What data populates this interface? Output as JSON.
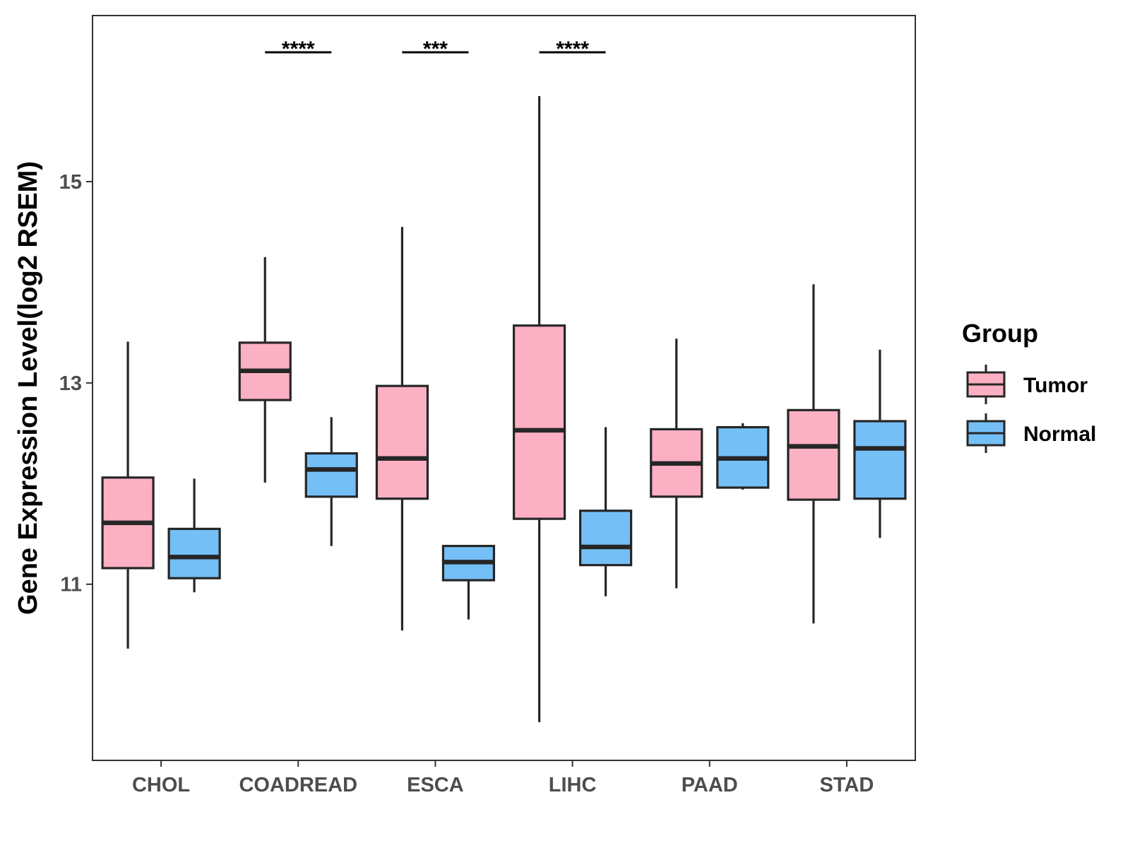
{
  "chart_data": {
    "type": "boxplot",
    "title": "",
    "xlabel": "",
    "ylabel": "Gene Expression Level(log2 RSEM)",
    "ylim": [
      9.25,
      16.65
    ],
    "yticks": [
      11,
      13,
      15
    ],
    "categories": [
      "CHOL",
      "COADREAD",
      "ESCA",
      "LIHC",
      "PAAD",
      "STAD"
    ],
    "legend": {
      "title": "Group",
      "position": "right",
      "entries": [
        {
          "name": "Tumor",
          "color": "#fbb1c3"
        },
        {
          "name": "Normal",
          "color": "#75bff7"
        }
      ]
    },
    "series": [
      {
        "name": "Tumor",
        "color": "#fbb1c3",
        "boxes": [
          {
            "category": "CHOL",
            "min": 10.36,
            "q1": 11.16,
            "median": 11.61,
            "q3": 12.06,
            "max": 13.41
          },
          {
            "category": "COADREAD",
            "min": 12.01,
            "q1": 12.83,
            "median": 13.12,
            "q3": 13.4,
            "max": 14.25
          },
          {
            "category": "ESCA",
            "min": 10.54,
            "q1": 11.85,
            "median": 12.25,
            "q3": 12.97,
            "max": 14.55
          },
          {
            "category": "LIHC",
            "min": 9.63,
            "q1": 11.65,
            "median": 12.53,
            "q3": 13.57,
            "max": 15.85
          },
          {
            "category": "PAAD",
            "min": 10.96,
            "q1": 11.87,
            "median": 12.2,
            "q3": 12.54,
            "max": 13.44
          },
          {
            "category": "STAD",
            "min": 10.61,
            "q1": 11.84,
            "median": 12.37,
            "q3": 12.73,
            "max": 13.98
          }
        ]
      },
      {
        "name": "Normal",
        "color": "#75bff7",
        "boxes": [
          {
            "category": "CHOL",
            "min": 10.92,
            "q1": 11.06,
            "median": 11.27,
            "q3": 11.55,
            "max": 12.05
          },
          {
            "category": "COADREAD",
            "min": 11.38,
            "q1": 11.87,
            "median": 12.14,
            "q3": 12.3,
            "max": 12.66
          },
          {
            "category": "ESCA",
            "min": 10.65,
            "q1": 11.04,
            "median": 11.22,
            "q3": 11.38,
            "max": 11.38
          },
          {
            "category": "LIHC",
            "min": 10.88,
            "q1": 11.19,
            "median": 11.37,
            "q3": 11.73,
            "max": 12.56
          },
          {
            "category": "PAAD",
            "min": 11.94,
            "q1": 11.96,
            "median": 12.25,
            "q3": 12.56,
            "max": 12.6
          },
          {
            "category": "STAD",
            "min": 11.46,
            "q1": 11.85,
            "median": 12.35,
            "q3": 12.62,
            "max": 13.33
          }
        ]
      }
    ],
    "annotations": [
      {
        "category": "COADREAD",
        "label": "****"
      },
      {
        "category": "ESCA",
        "label": "***"
      },
      {
        "category": "LIHC",
        "label": "****"
      }
    ]
  }
}
